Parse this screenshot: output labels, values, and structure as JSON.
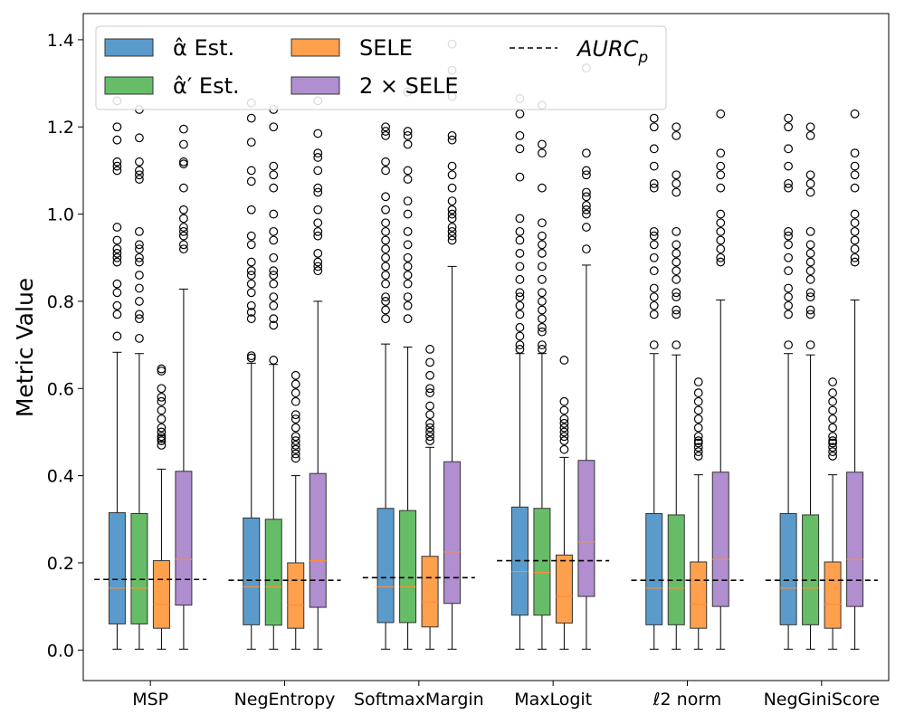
{
  "chart_data": {
    "type": "boxplot",
    "title": "",
    "xlabel": "",
    "ylabel": "Metric Value",
    "ylim": [
      -0.07,
      1.46
    ],
    "yticks": [
      "0.0",
      "0.2",
      "0.4",
      "0.6",
      "0.8",
      "1.0",
      "1.2",
      "1.4"
    ],
    "categories": [
      "MSP",
      "NegEntropy",
      "SoftmaxMargin",
      "MaxLogit",
      "ℓ2 norm",
      "NegGiniScore"
    ],
    "series": [
      {
        "name": "α̂ Est.",
        "color": "#5b9bcc"
      },
      {
        "name": "α̂′ Est.",
        "color": "#67bd67"
      },
      {
        "name": "SELE",
        "color": "#ffa04d"
      },
      {
        "name": "2 × SELE",
        "color": "#b08ed0"
      }
    ],
    "median_color": "#ff8c33",
    "reference": {
      "name": "AURC_p",
      "label": "AURC",
      "subscript": "p",
      "values": [
        0.162,
        0.16,
        0.166,
        0.205,
        0.16,
        0.16
      ]
    },
    "legend": {
      "location": "top-left",
      "columns": 3
    },
    "boxes": [
      [
        {
          "q1": 0.06,
          "median": 0.142,
          "q3": 0.315,
          "whislo": 0.002,
          "whishi": 0.683,
          "fliers": [
            0.72,
            0.77,
            0.79,
            0.82,
            0.84,
            0.89,
            0.9,
            0.91,
            0.92,
            0.94,
            0.97,
            1.1,
            1.11,
            1.12,
            1.17,
            1.2,
            1.26
          ]
        },
        {
          "q1": 0.06,
          "median": 0.142,
          "q3": 0.313,
          "whislo": 0.002,
          "whishi": 0.68,
          "fliers": [
            0.715,
            0.76,
            0.77,
            0.8,
            0.83,
            0.86,
            0.89,
            0.9,
            0.92,
            0.93,
            0.96,
            1.08,
            1.09,
            1.1,
            1.12,
            1.175,
            1.24
          ]
        },
        {
          "q1": 0.05,
          "median": 0.105,
          "q3": 0.205,
          "whislo": 0.002,
          "whishi": 0.415,
          "fliers": [
            0.47,
            0.48,
            0.485,
            0.49,
            0.5,
            0.51,
            0.53,
            0.55,
            0.57,
            0.58,
            0.6,
            0.64,
            0.645
          ]
        },
        {
          "q1": 0.103,
          "median": 0.208,
          "q3": 0.41,
          "whislo": 0.002,
          "whishi": 0.828,
          "fliers": [
            0.92,
            0.93,
            0.95,
            0.96,
            0.97,
            0.99,
            1.01,
            1.06,
            1.115,
            1.12,
            1.16,
            1.195
          ]
        }
      ],
      [
        {
          "q1": 0.058,
          "median": 0.145,
          "q3": 0.303,
          "whislo": 0.002,
          "whishi": 0.658,
          "fliers": [
            0.67,
            0.675,
            0.76,
            0.775,
            0.79,
            0.82,
            0.84,
            0.86,
            0.87,
            0.89,
            0.93,
            0.95,
            1.01,
            1.075,
            1.1,
            1.165,
            1.22,
            1.255
          ]
        },
        {
          "q1": 0.057,
          "median": 0.145,
          "q3": 0.3,
          "whislo": 0.002,
          "whishi": 0.655,
          "fliers": [
            0.665,
            0.745,
            0.76,
            0.79,
            0.81,
            0.84,
            0.86,
            0.87,
            0.9,
            0.94,
            0.96,
            1.0,
            1.06,
            1.09,
            1.11,
            1.2,
            1.24
          ]
        },
        {
          "q1": 0.05,
          "median": 0.103,
          "q3": 0.2,
          "whislo": 0.002,
          "whishi": 0.4,
          "fliers": [
            0.44,
            0.45,
            0.46,
            0.47,
            0.48,
            0.49,
            0.51,
            0.53,
            0.54,
            0.57,
            0.59,
            0.61,
            0.63
          ]
        },
        {
          "q1": 0.098,
          "median": 0.205,
          "q3": 0.405,
          "whislo": 0.002,
          "whishi": 0.8,
          "fliers": [
            0.87,
            0.88,
            0.89,
            0.91,
            0.95,
            0.96,
            0.98,
            1.01,
            1.05,
            1.06,
            1.1,
            1.13,
            1.14,
            1.185,
            1.26
          ]
        }
      ],
      [
        {
          "q1": 0.063,
          "median": 0.145,
          "q3": 0.325,
          "whislo": 0.002,
          "whishi": 0.702,
          "fliers": [
            0.76,
            0.78,
            0.8,
            0.81,
            0.84,
            0.86,
            0.88,
            0.9,
            0.92,
            0.94,
            0.96,
            0.98,
            1.01,
            1.04,
            1.1,
            1.12,
            1.18,
            1.19,
            1.2
          ]
        },
        {
          "q1": 0.063,
          "median": 0.145,
          "q3": 0.32,
          "whislo": 0.002,
          "whishi": 0.695,
          "fliers": [
            0.76,
            0.79,
            0.81,
            0.84,
            0.86,
            0.88,
            0.9,
            0.93,
            0.96,
            1.0,
            1.03,
            1.08,
            1.1,
            1.16,
            1.18,
            1.19,
            1.28
          ]
        },
        {
          "q1": 0.053,
          "median": 0.11,
          "q3": 0.215,
          "whislo": 0.002,
          "whishi": 0.465,
          "fliers": [
            0.48,
            0.49,
            0.5,
            0.51,
            0.52,
            0.54,
            0.56,
            0.59,
            0.6,
            0.63,
            0.66,
            0.69
          ]
        },
        {
          "q1": 0.107,
          "median": 0.225,
          "q3": 0.432,
          "whislo": 0.002,
          "whishi": 0.88,
          "fliers": [
            0.94,
            0.95,
            0.96,
            0.97,
            0.99,
            1.0,
            1.01,
            1.03,
            1.06,
            1.09,
            1.11,
            1.17,
            1.18,
            1.27,
            1.33,
            1.39
          ]
        }
      ],
      [
        {
          "q1": 0.08,
          "median": 0.18,
          "q3": 0.328,
          "whislo": 0.002,
          "whishi": 0.68,
          "fliers": [
            0.69,
            0.7,
            0.72,
            0.74,
            0.77,
            0.79,
            0.81,
            0.82,
            0.85,
            0.88,
            0.91,
            0.94,
            0.96,
            0.99,
            1.085,
            1.15,
            1.18,
            1.23,
            1.265
          ]
        },
        {
          "q1": 0.08,
          "median": 0.178,
          "q3": 0.325,
          "whislo": 0.002,
          "whishi": 0.68,
          "fliers": [
            0.69,
            0.7,
            0.73,
            0.74,
            0.76,
            0.78,
            0.8,
            0.82,
            0.85,
            0.88,
            0.91,
            0.93,
            0.95,
            0.98,
            1.06,
            1.14,
            1.16,
            1.25
          ]
        },
        {
          "q1": 0.062,
          "median": 0.123,
          "q3": 0.218,
          "whislo": 0.002,
          "whishi": 0.442,
          "fliers": [
            0.46,
            0.48,
            0.49,
            0.5,
            0.51,
            0.52,
            0.53,
            0.55,
            0.57,
            0.665
          ]
        },
        {
          "q1": 0.123,
          "median": 0.248,
          "q3": 0.435,
          "whislo": 0.002,
          "whishi": 0.883,
          "fliers": [
            0.92,
            0.97,
            1.0,
            1.01,
            1.02,
            1.04,
            1.05,
            1.09,
            1.1,
            1.14,
            1.335
          ]
        }
      ],
      [
        {
          "q1": 0.058,
          "median": 0.142,
          "q3": 0.313,
          "whislo": 0.002,
          "whishi": 0.68,
          "fliers": [
            0.7,
            0.77,
            0.79,
            0.81,
            0.83,
            0.87,
            0.9,
            0.93,
            0.95,
            0.96,
            1.06,
            1.07,
            1.11,
            1.15,
            1.2,
            1.22
          ]
        },
        {
          "q1": 0.058,
          "median": 0.142,
          "q3": 0.31,
          "whislo": 0.002,
          "whishi": 0.677,
          "fliers": [
            0.7,
            0.77,
            0.78,
            0.81,
            0.82,
            0.85,
            0.87,
            0.89,
            0.91,
            0.93,
            0.96,
            1.05,
            1.07,
            1.09,
            1.18,
            1.2
          ]
        },
        {
          "q1": 0.05,
          "median": 0.105,
          "q3": 0.202,
          "whislo": 0.002,
          "whishi": 0.402,
          "fliers": [
            0.445,
            0.455,
            0.465,
            0.475,
            0.48,
            0.49,
            0.51,
            0.53,
            0.55,
            0.57,
            0.59,
            0.615
          ]
        },
        {
          "q1": 0.1,
          "median": 0.208,
          "q3": 0.408,
          "whislo": 0.002,
          "whishi": 0.803,
          "fliers": [
            0.89,
            0.9,
            0.92,
            0.94,
            0.96,
            0.98,
            1.0,
            1.06,
            1.09,
            1.11,
            1.14,
            1.23
          ]
        }
      ],
      [
        {
          "q1": 0.058,
          "median": 0.142,
          "q3": 0.313,
          "whislo": 0.002,
          "whishi": 0.68,
          "fliers": [
            0.7,
            0.77,
            0.79,
            0.81,
            0.83,
            0.87,
            0.9,
            0.93,
            0.95,
            0.96,
            1.06,
            1.07,
            1.11,
            1.15,
            1.2,
            1.22
          ]
        },
        {
          "q1": 0.058,
          "median": 0.142,
          "q3": 0.31,
          "whislo": 0.002,
          "whishi": 0.677,
          "fliers": [
            0.7,
            0.77,
            0.78,
            0.81,
            0.82,
            0.85,
            0.87,
            0.89,
            0.91,
            0.93,
            0.96,
            1.05,
            1.07,
            1.09,
            1.18,
            1.2
          ]
        },
        {
          "q1": 0.05,
          "median": 0.105,
          "q3": 0.202,
          "whislo": 0.002,
          "whishi": 0.402,
          "fliers": [
            0.445,
            0.455,
            0.465,
            0.475,
            0.48,
            0.49,
            0.51,
            0.53,
            0.55,
            0.57,
            0.59,
            0.615
          ]
        },
        {
          "q1": 0.1,
          "median": 0.208,
          "q3": 0.408,
          "whislo": 0.002,
          "whishi": 0.803,
          "fliers": [
            0.89,
            0.9,
            0.92,
            0.94,
            0.96,
            0.98,
            1.0,
            1.06,
            1.09,
            1.11,
            1.14,
            1.23
          ]
        }
      ]
    ]
  }
}
